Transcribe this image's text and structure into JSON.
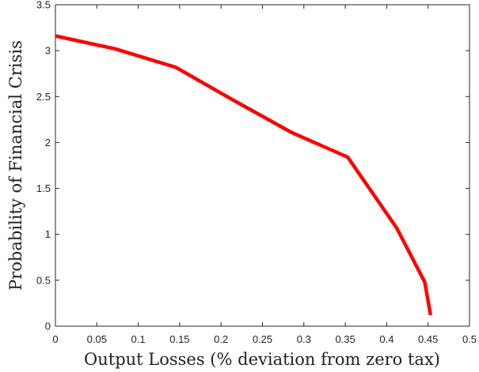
{
  "chart_data": {
    "type": "line",
    "title": "",
    "xlabel": "Output Losses (% deviation from zero tax)",
    "ylabel": "Probability of Financial Crisis",
    "xlim": [
      0,
      0.5
    ],
    "ylim": [
      0,
      3.5
    ],
    "xticks": [
      0,
      0.05,
      0.1,
      0.15,
      0.2,
      0.25,
      0.3,
      0.35,
      0.4,
      0.45,
      0.5
    ],
    "xtick_labels": [
      "0",
      "0.05",
      "0.1",
      "0.15",
      "0.2",
      "0.25",
      "0.3",
      "0.35",
      "0.4",
      "0.45",
      "0.5"
    ],
    "yticks": [
      0,
      0.5,
      1,
      1.5,
      2,
      2.5,
      3,
      3.5
    ],
    "ytick_labels": [
      "0",
      "0.5",
      "1",
      "1.5",
      "2",
      "2.5",
      "3",
      "3.5"
    ],
    "grid": false,
    "series": [
      {
        "color": "#ff0000",
        "x": [
          0,
          0.072,
          0.145,
          0.215,
          0.285,
          0.353,
          0.412,
          0.446,
          0.453
        ],
        "y": [
          3.16,
          3.02,
          2.82,
          2.46,
          2.11,
          1.84,
          1.07,
          0.48,
          0.12
        ]
      }
    ]
  }
}
